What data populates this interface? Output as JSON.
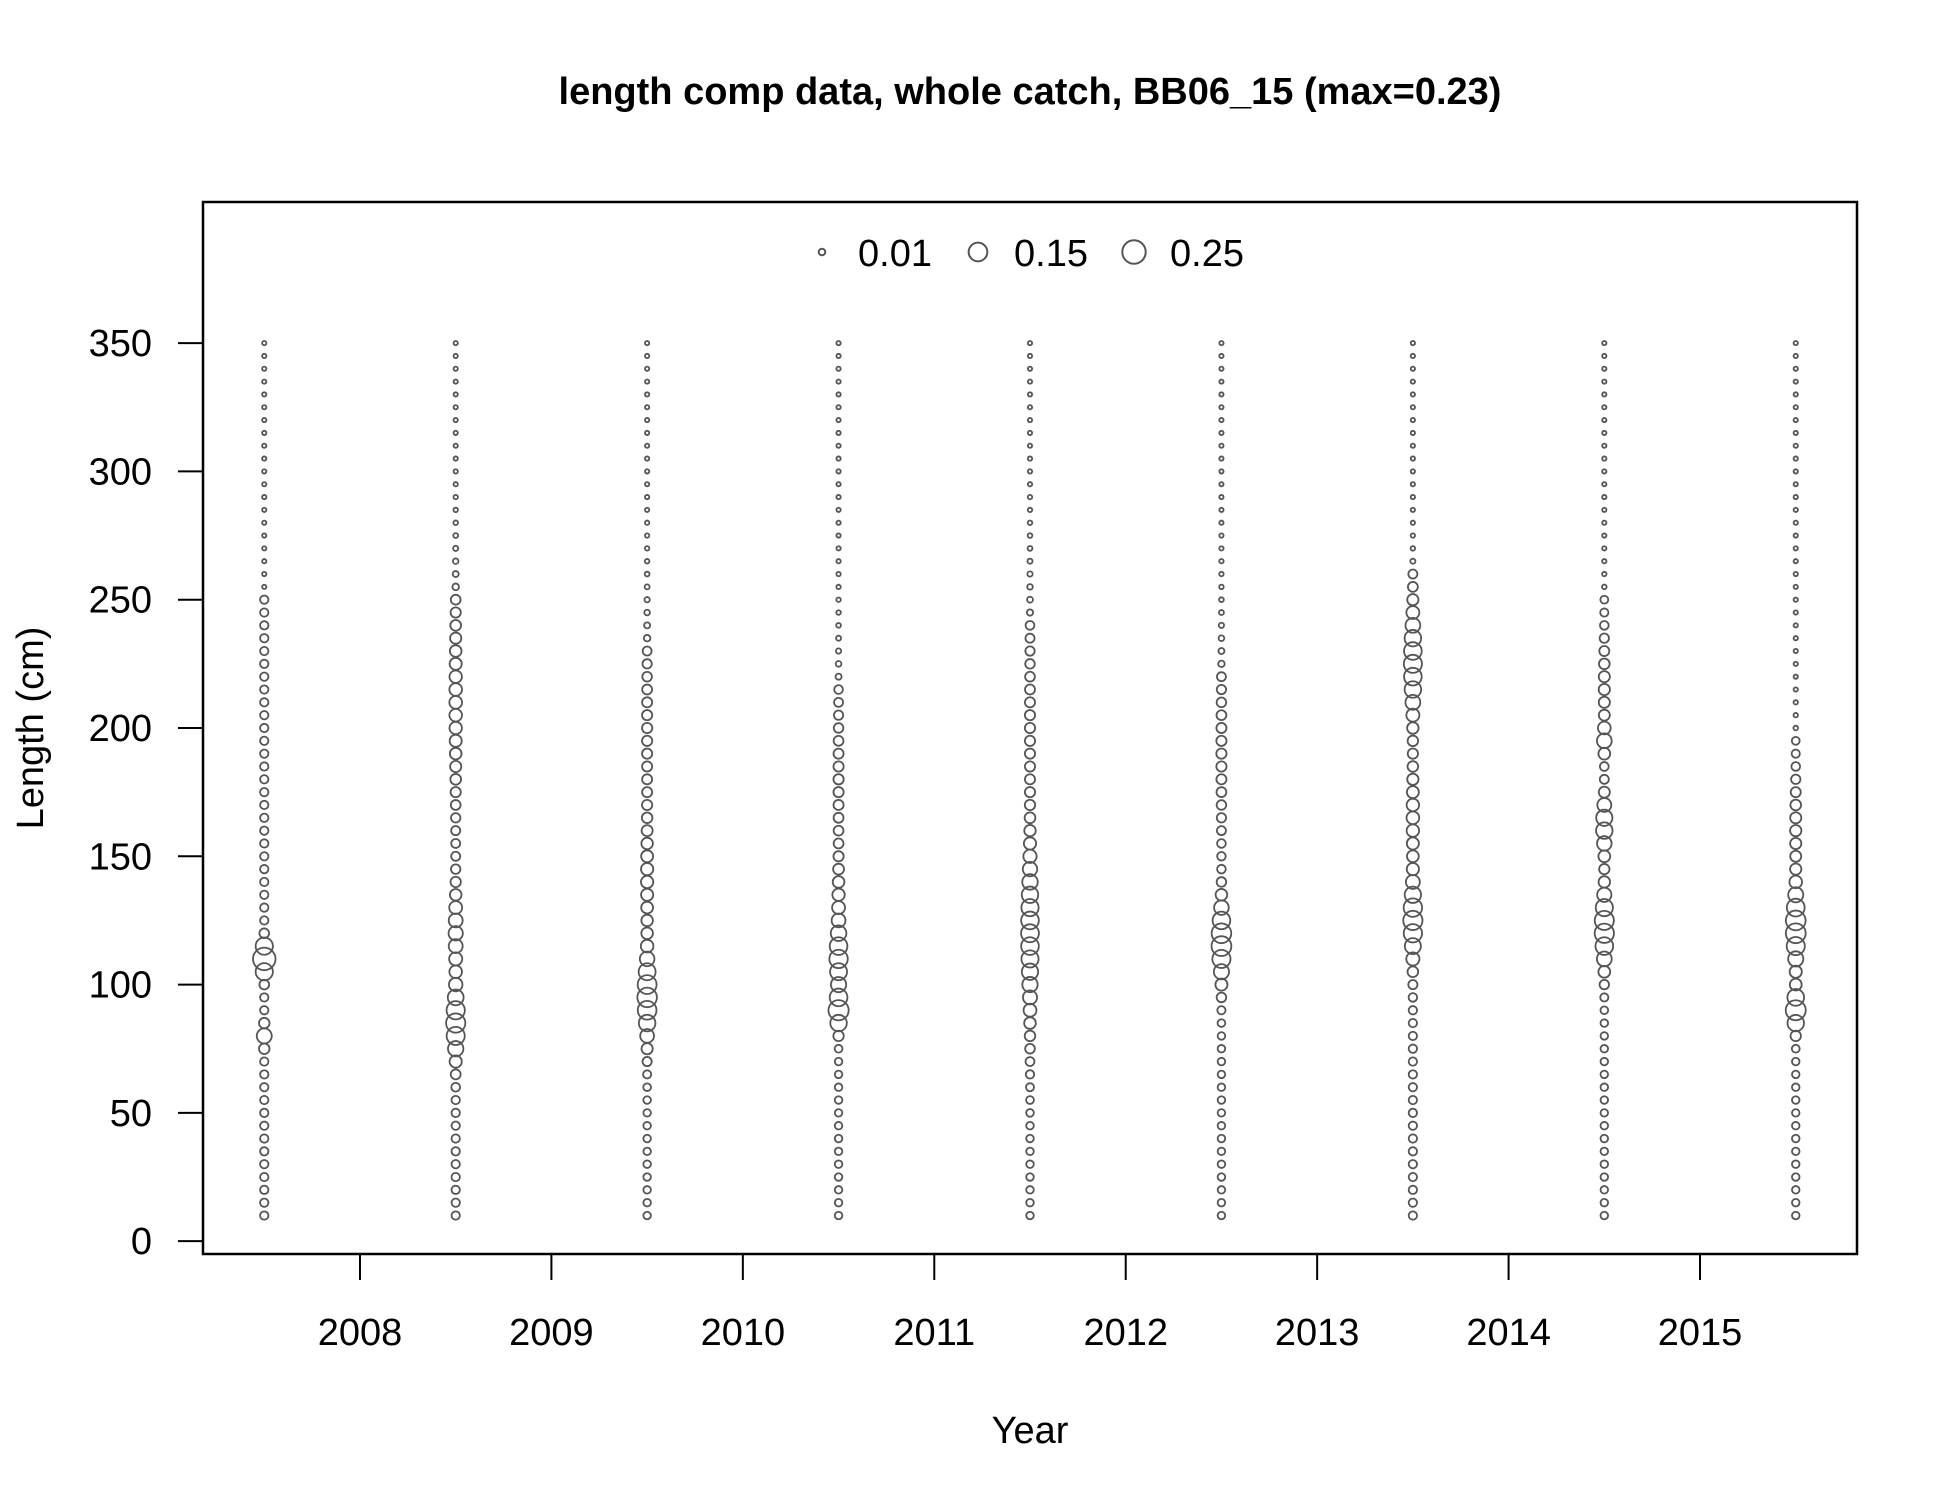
{
  "chart_data": {
    "type": "scatter",
    "subtype": "bubble",
    "title": "length comp data, whole catch, BB06_15 (max=0.23)",
    "xlabel": "Year",
    "ylabel": "Length (cm)",
    "xlim": [
      2007.18,
      2015.82
    ],
    "ylim": [
      -5,
      405
    ],
    "x_ticks": [
      2008,
      2009,
      2010,
      2011,
      2012,
      2013,
      2014,
      2015
    ],
    "x_tick_labels": [
      "2008",
      "2009",
      "2010",
      "2011",
      "2012",
      "2013",
      "2014",
      "2015"
    ],
    "y_ticks": [
      0,
      50,
      100,
      150,
      200,
      250,
      300,
      350
    ],
    "y_tick_labels": [
      "0",
      "50",
      "100",
      "150",
      "200",
      "250",
      "300",
      "350"
    ],
    "legend": {
      "placement": "top-center",
      "entries": [
        {
          "value": 0.01,
          "label": "0.01"
        },
        {
          "value": 0.15,
          "label": "0.15"
        },
        {
          "value": 0.25,
          "label": "0.25"
        }
      ]
    },
    "max_proportion": 0.23,
    "length_bins": {
      "min": 10,
      "max": 350,
      "step": 5
    },
    "grid": false,
    "series": [
      {
        "x": 2007.5,
        "peaks": [
          [
            110,
            0.23,
            4
          ],
          [
            80,
            0.07,
            3
          ]
        ],
        "background": 0.02,
        "bg_top": 250
      },
      {
        "x": 2008.5,
        "peaks": [
          [
            85,
            0.14,
            9
          ],
          [
            120,
            0.06,
            12
          ],
          [
            210,
            0.04,
            25
          ]
        ],
        "background": 0.02,
        "bg_top": 250
      },
      {
        "x": 2009.5,
        "peaks": [
          [
            95,
            0.15,
            11
          ],
          [
            140,
            0.04,
            18
          ],
          [
            200,
            0.02,
            25
          ]
        ],
        "background": 0.015,
        "bg_top": 230
      },
      {
        "x": 2010.5,
        "peaks": [
          [
            90,
            0.16,
            5
          ],
          [
            110,
            0.12,
            8
          ],
          [
            130,
            0.04,
            12
          ],
          [
            180,
            0.02,
            25
          ]
        ],
        "background": 0.015,
        "bg_top": 215
      },
      {
        "x": 2011.5,
        "peaks": [
          [
            120,
            0.12,
            22
          ],
          [
            200,
            0.02,
            30
          ]
        ],
        "background": 0.015,
        "bg_top": 240
      },
      {
        "x": 2012.5,
        "peaks": [
          [
            117,
            0.16,
            10
          ],
          [
            190,
            0.02,
            25
          ]
        ],
        "background": 0.015,
        "bg_top": 220
      },
      {
        "x": 2013.5,
        "peaks": [
          [
            125,
            0.14,
            10
          ],
          [
            225,
            0.12,
            14
          ],
          [
            165,
            0.04,
            15
          ]
        ],
        "background": 0.02,
        "bg_top": 260
      },
      {
        "x": 2014.5,
        "peaks": [
          [
            122,
            0.15,
            10
          ],
          [
            162,
            0.1,
            8
          ],
          [
            195,
            0.06,
            4
          ],
          [
            215,
            0.03,
            15
          ]
        ],
        "background": 0.015,
        "bg_top": 250
      },
      {
        "x": 2015.5,
        "peaks": [
          [
            90,
            0.16,
            5
          ],
          [
            122,
            0.16,
            10
          ],
          [
            160,
            0.03,
            15
          ]
        ],
        "background": 0.015,
        "bg_top": 195
      }
    ]
  }
}
